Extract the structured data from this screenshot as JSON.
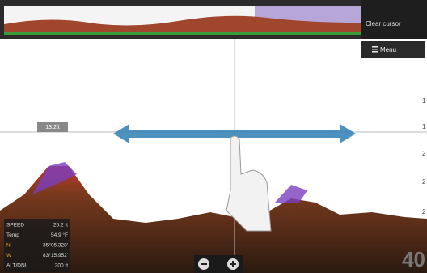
{
  "header": {
    "clear_cursor": "Clear cursor",
    "menu": "Menu"
  },
  "cursor": {
    "depth": "13.2ft"
  },
  "depth_scale": [
    "1",
    "1",
    "2",
    "2",
    "2"
  ],
  "info": [
    {
      "label": "SPEED",
      "value": "26.2 ft"
    },
    {
      "label": "Temp",
      "value": "54.9 °F"
    },
    {
      "label": "N",
      "value": "35°05.328'"
    },
    {
      "label": "W",
      "value": "83°15.952'"
    },
    {
      "label": "ALT/DNL",
      "value": "200 ft"
    }
  ],
  "depth_readout": "40"
}
